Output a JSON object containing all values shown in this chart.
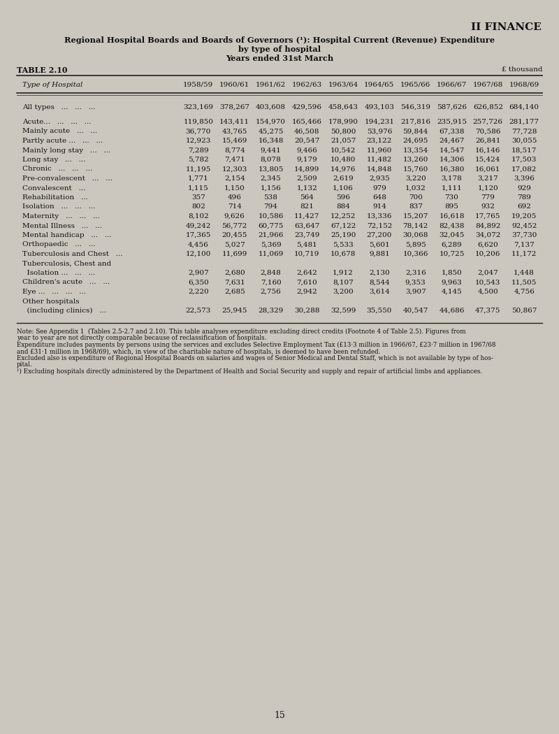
{
  "title_section": "II FINANCE",
  "subtitle1": "Regional Hospital Boards and Boards of Governors (¹): Hospital Current (Revenue) Expenditure",
  "subtitle2": "by type of hospital",
  "subtitle3": "Years ended 31st March",
  "table_label": "TABLE 2.10",
  "unit_label": "£ thousand",
  "columns": [
    "Type of Hospital",
    "1958/59",
    "1960/61",
    "1961/62",
    "1962/63",
    "1963/64",
    "1964/65",
    "1965/66",
    "1966/67",
    "1967/68",
    "1968/69"
  ],
  "rows": [
    {
      "label": "All types",
      "dots": "   ...   ...   ...",
      "indent": 0,
      "bold": false,
      "gap_after": true,
      "values": [
        "323,169",
        "378,267",
        "403,608",
        "429,596",
        "458,643",
        "493,103",
        "546,319",
        "587,626",
        "626,852",
        "684,140"
      ]
    },
    {
      "label": "Acute...",
      "dots": "   ...   ...   ...",
      "indent": 1,
      "bold": false,
      "gap_after": false,
      "values": [
        "119,850",
        "143,411",
        "154,970",
        "165,466",
        "178,990",
        "194,231",
        "217,816",
        "235,915",
        "257,726",
        "281,177"
      ]
    },
    {
      "label": "Mainly acute",
      "dots": "   ...   ...",
      "indent": 1,
      "bold": false,
      "gap_after": false,
      "values": [
        "36,770",
        "43,765",
        "45,275",
        "46,508",
        "50,800",
        "53,976",
        "59,844",
        "67,338",
        "70,586",
        "77,728"
      ]
    },
    {
      "label": "Partly acute ...",
      "dots": "   ...   ...",
      "indent": 1,
      "bold": false,
      "gap_after": false,
      "values": [
        "12,923",
        "15,469",
        "16,348",
        "20,547",
        "21,057",
        "23,122",
        "24,695",
        "24,467",
        "26,841",
        "30,055"
      ]
    },
    {
      "label": "Mainly long stay",
      "dots": "   ...   ...",
      "indent": 1,
      "bold": false,
      "gap_after": false,
      "values": [
        "7,289",
        "8,774",
        "9,441",
        "9,466",
        "10,542",
        "11,960",
        "13,354",
        "14,547",
        "16,146",
        "18,517"
      ]
    },
    {
      "label": "Long stay",
      "dots": "   ...   ...",
      "indent": 1,
      "bold": false,
      "gap_after": false,
      "values": [
        "5,782",
        "7,471",
        "8,078",
        "9,179",
        "10,480",
        "11,482",
        "13,260",
        "14,306",
        "15,424",
        "17,503"
      ]
    },
    {
      "label": "Chronic",
      "dots": "   ...   ...   ...",
      "indent": 1,
      "bold": false,
      "gap_after": false,
      "values": [
        "11,195",
        "12,303",
        "13,805",
        "14,899",
        "14,976",
        "14,848",
        "15,760",
        "16,380",
        "16,061",
        "17,082"
      ]
    },
    {
      "label": "Pre-convalescent",
      "dots": "   ...   ...",
      "indent": 1,
      "bold": false,
      "gap_after": false,
      "values": [
        "1,771",
        "2,154",
        "2,345",
        "2,509",
        "2,619",
        "2,935",
        "3,220",
        "3,178",
        "3,217",
        "3,396"
      ]
    },
    {
      "label": "Convalescent",
      "dots": "   ...",
      "indent": 1,
      "bold": false,
      "gap_after": false,
      "values": [
        "1,115",
        "1,150",
        "1,156",
        "1,132",
        "1,106",
        "979",
        "1,032",
        "1,111",
        "1,120",
        "929"
      ]
    },
    {
      "label": "Rehabilitation",
      "dots": "   ...",
      "indent": 1,
      "bold": false,
      "gap_after": false,
      "values": [
        "357",
        "496",
        "538",
        "564",
        "596",
        "648",
        "700",
        "730",
        "779",
        "789"
      ]
    },
    {
      "label": "Isolation",
      "dots": "   ...   ...   ...",
      "indent": 1,
      "bold": false,
      "gap_after": false,
      "values": [
        "802",
        "714",
        "794",
        "821",
        "884",
        "914",
        "837",
        "895",
        "932",
        "692"
      ]
    },
    {
      "label": "Maternity",
      "dots": "   ...   ...   ...",
      "indent": 1,
      "bold": false,
      "gap_after": false,
      "values": [
        "8,102",
        "9,626",
        "10,586",
        "11,427",
        "12,252",
        "13,336",
        "15,207",
        "16,618",
        "17,765",
        "19,205"
      ]
    },
    {
      "label": "Mental Illness",
      "dots": "   ...   ...",
      "indent": 1,
      "bold": false,
      "gap_after": false,
      "values": [
        "49,242",
        "56,772",
        "60,775",
        "63,647",
        "67,122",
        "72,152",
        "78,142",
        "82,438",
        "84,892",
        "92,452"
      ]
    },
    {
      "label": "Mental handicap",
      "dots": "   ...   ...",
      "indent": 1,
      "bold": false,
      "gap_after": false,
      "values": [
        "17,365",
        "20,455",
        "21,966",
        "23,749",
        "25,190",
        "27,200",
        "30,068",
        "32,045",
        "34,072",
        "37,730"
      ]
    },
    {
      "label": "Orthopaedic",
      "dots": "   ...   ...",
      "indent": 1,
      "bold": false,
      "gap_after": false,
      "values": [
        "4,456",
        "5,027",
        "5,369",
        "5,481",
        "5,533",
        "5,601",
        "5,895",
        "6,289",
        "6,620",
        "7,137"
      ]
    },
    {
      "label": "Tuberculosis and Chest",
      "dots": "   ...",
      "indent": 1,
      "bold": false,
      "gap_after": false,
      "values": [
        "12,100",
        "11,699",
        "11,069",
        "10,719",
        "10,678",
        "9,881",
        "10,366",
        "10,725",
        "10,206",
        "11,172"
      ]
    },
    {
      "label": "Tuberculosis, Chest and",
      "dots": "",
      "indent": 1,
      "bold": false,
      "gap_after": false,
      "values": [
        "",
        "",
        "",
        "",
        "",
        "",
        "",
        "",
        "",
        ""
      ]
    },
    {
      "label": "  Isolation ...",
      "dots": "   ...   ...",
      "indent": 1,
      "bold": false,
      "gap_after": false,
      "values": [
        "2,907",
        "2,680",
        "2,848",
        "2,642",
        "1,912",
        "2,130",
        "2,316",
        "1,850",
        "2,047",
        "1,448"
      ]
    },
    {
      "label": "Children's acute",
      "dots": "   ...   ...",
      "indent": 1,
      "bold": false,
      "gap_after": false,
      "values": [
        "6,350",
        "7,631",
        "7,160",
        "7,610",
        "8,107",
        "8,544",
        "9,353",
        "9,963",
        "10,543",
        "11,505"
      ]
    },
    {
      "label": "Eye ...",
      "dots": "   ...   ...   ...",
      "indent": 1,
      "bold": false,
      "gap_after": false,
      "values": [
        "2,220",
        "2,685",
        "2,756",
        "2,942",
        "3,200",
        "3,614",
        "3,907",
        "4,145",
        "4,500",
        "4,756"
      ]
    },
    {
      "label": "Other hospitals",
      "dots": "",
      "indent": 1,
      "bold": false,
      "gap_after": false,
      "values": [
        "",
        "",
        "",
        "",
        "",
        "",
        "",
        "",
        "",
        ""
      ]
    },
    {
      "label": "  (including clinics)",
      "dots": "   ...",
      "indent": 1,
      "bold": false,
      "gap_after": false,
      "values": [
        "22,573",
        "25,945",
        "28,329",
        "30,288",
        "32,599",
        "35,550",
        "40,547",
        "44,686",
        "47,375",
        "50,867"
      ]
    }
  ],
  "note_lines": [
    "Note: See Appendix 1  (Tables 2.5-2.7 and 2.10). This table analyses expenditure excluding direct credits (Footnote 4 of Table 2.5). Figures from",
    "year to year are not directly comparable because of reclassification of hospitals.",
    "Expenditure includes payments by persons using the services and excludes Selective Employment Tax (£13·3 million in 1966/67, £23·7 million in 1967/68",
    "and £31·1 million in 1968/69), which, in view of the charitable nature of hospitals, is deemed to have been refunded.",
    "Excluded also is expenditure of Regional Hospital Boards on salaries and wages of Senior Medical and Dental Staff, which is not available by type of hos-",
    "pital.",
    "¹) Excluding hospitals directly administered by the Department of Health and Social Security and supply and repair of artificial limbs and appliances."
  ],
  "footer_text": "15",
  "bg_color": "#cbc6be",
  "text_color": "#111111",
  "line_color": "#222222"
}
